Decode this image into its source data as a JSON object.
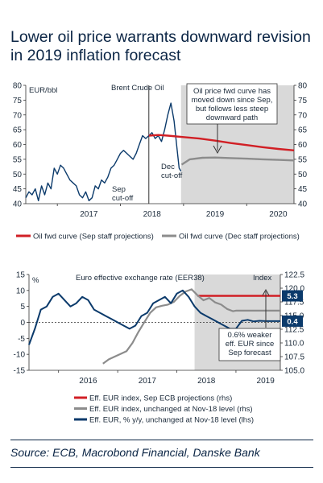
{
  "title": "Lower oil price warrants downward revision in 2019 inflation forecast",
  "source": "Source: ECB, Macrobond Financial, Danske Bank",
  "colors": {
    "navy": "#0b3a6b",
    "red": "#d11f25",
    "grey": "#8c8c8c",
    "shade": "#d9d9d9"
  },
  "chart_data": [
    {
      "type": "line",
      "unit_label": "EUR/bbl",
      "ylim": [
        40,
        80
      ],
      "yticks": [
        "40",
        "45",
        "50",
        "55",
        "60",
        "65",
        "70",
        "75",
        "80"
      ],
      "xlim": [
        2016.5,
        2020.75
      ],
      "xticks": [
        {
          "label": "2017",
          "x": 2017.0
        },
        {
          "label": "2018",
          "x": 2018.0
        },
        {
          "label": "2019",
          "x": 2019.0
        },
        {
          "label": "2020",
          "x": 2020.0
        }
      ],
      "series": [
        {
          "name": "Brent Crude Oil",
          "color": "#0b3a6b",
          "x": [
            2016.5,
            2016.55,
            2016.6,
            2016.65,
            2016.7,
            2016.75,
            2016.8,
            2016.85,
            2016.9,
            2016.95,
            2017.0,
            2017.05,
            2017.1,
            2017.15,
            2017.2,
            2017.25,
            2017.3,
            2017.35,
            2017.4,
            2017.45,
            2017.5,
            2017.55,
            2017.6,
            2017.65,
            2017.7,
            2017.75,
            2017.8,
            2017.85,
            2017.9,
            2017.95,
            2018.0,
            2018.05,
            2018.1,
            2018.15,
            2018.2,
            2018.25,
            2018.3,
            2018.35,
            2018.4,
            2018.45,
            2018.5,
            2018.55,
            2018.6,
            2018.65,
            2018.7,
            2018.75,
            2018.8,
            2018.85,
            2018.9,
            2018.93,
            2018.96
          ],
          "y": [
            42,
            44,
            43,
            45,
            41,
            46,
            43,
            47,
            45,
            52,
            50,
            53,
            52,
            50,
            48,
            47,
            46,
            43,
            42,
            44,
            41,
            42,
            46,
            45,
            48,
            47,
            49,
            52,
            53,
            55,
            57,
            58,
            57,
            56,
            55,
            57,
            60,
            63,
            62,
            63,
            64,
            62,
            63,
            61,
            65,
            70,
            74,
            68,
            58,
            52,
            51
          ]
        },
        {
          "name": "Oil fwd curve (Sep staff projections)",
          "color": "#d11f25",
          "x": [
            2018.45,
            2018.6,
            2018.75,
            2019.0,
            2019.25,
            2019.5,
            2019.75,
            2020.0,
            2020.25,
            2020.5,
            2020.75
          ],
          "y": [
            63.0,
            63.2,
            63.0,
            62.5,
            62.0,
            61.3,
            60.5,
            59.8,
            59.1,
            58.5,
            58.0
          ]
        },
        {
          "name": "Oil fwd curve (Dec staff projections)",
          "color": "#8c8c8c",
          "x": [
            2018.97,
            2019.1,
            2019.3,
            2019.5,
            2019.75,
            2020.0,
            2020.25,
            2020.5,
            2020.75
          ],
          "y": [
            53.2,
            55.0,
            55.5,
            55.6,
            55.4,
            55.2,
            55.0,
            54.8,
            54.6
          ]
        }
      ],
      "annotations": {
        "series_label": "Brent Crude Oil",
        "callout": [
          "Oil price fwd curve has",
          "moved down since Sep,",
          "but follows less steep",
          "downward path"
        ],
        "sep": [
          "Sep",
          "cut-off"
        ],
        "dec": [
          "Dec",
          "cut-off"
        ]
      },
      "shaded_from": 2018.96,
      "legend": [
        "Oil fwd curve (Sep staff projections)",
        "Oil fwd curve (Dec staff projections)"
      ]
    },
    {
      "type": "line",
      "left_unit": "%",
      "right_unit": "Index",
      "header": "Euro effective exchange rate (EER38)",
      "ylim_left": [
        -15,
        15
      ],
      "yticks_left": [
        "-15",
        "-10",
        "-5",
        "0",
        "5",
        "10",
        "15"
      ],
      "ylim_right": [
        105,
        122.5
      ],
      "yticks_right": [
        "105.0",
        "107.5",
        "110.0",
        "112.5",
        "115.0",
        "117.5",
        "120.0",
        "122.5"
      ],
      "xlim": [
        2015.5,
        2019.75
      ],
      "xticks": [
        {
          "label": "2016",
          "x": 2016.0
        },
        {
          "label": "2017",
          "x": 2017.0
        },
        {
          "label": "2018",
          "x": 2018.0
        },
        {
          "label": "2019",
          "x": 2019.0
        }
      ],
      "value_labels": [
        "5.3",
        "0.4"
      ],
      "callout": [
        "0.6% weaker",
        "eff. EUR since",
        "Sep forecast"
      ],
      "shaded_from": 2018.3,
      "series": [
        {
          "name": "Eff. EUR index, Sep ECB projections (rhs)",
          "axis": "right",
          "color": "#d11f25",
          "x": [
            2018.35,
            2019.75
          ],
          "y": [
            118.6,
            118.6
          ]
        },
        {
          "name": "Eff. EUR index, unchanged at Nov-18 level (rhs)",
          "axis": "right",
          "color": "#8c8c8c",
          "x": [
            2016.75,
            2016.85,
            2016.95,
            2017.05,
            2017.15,
            2017.25,
            2017.35,
            2017.45,
            2017.55,
            2017.65,
            2017.75,
            2017.85,
            2017.95,
            2018.05,
            2018.15,
            2018.25,
            2018.35,
            2018.45,
            2018.55,
            2018.65,
            2018.75,
            2018.85,
            2018.95,
            2019.0,
            2019.75
          ],
          "y": [
            106.2,
            107.0,
            107.5,
            108.0,
            108.5,
            110.0,
            112.0,
            113.8,
            115.5,
            116.5,
            116.8,
            117.0,
            117.5,
            118.6,
            119.4,
            119.8,
            118.7,
            117.8,
            118.2,
            117.4,
            117.0,
            116.2,
            115.8,
            115.9,
            115.9
          ]
        },
        {
          "name": "Eff. EUR, % y/y, unchanged at Nov-18 level (lhs)",
          "axis": "left",
          "color": "#0b3a6b",
          "x": [
            2015.5,
            2015.6,
            2015.7,
            2015.8,
            2015.9,
            2016.0,
            2016.1,
            2016.2,
            2016.3,
            2016.4,
            2016.5,
            2016.6,
            2016.7,
            2016.8,
            2016.9,
            2017.0,
            2017.1,
            2017.2,
            2017.3,
            2017.4,
            2017.5,
            2017.6,
            2017.7,
            2017.8,
            2017.9,
            2018.0,
            2018.1,
            2018.2,
            2018.3,
            2018.4,
            2018.5,
            2018.6,
            2018.7,
            2018.8,
            2018.9,
            2019.0,
            2019.1,
            2019.2,
            2019.3,
            2019.4,
            2019.5,
            2019.6,
            2019.75
          ],
          "y": [
            -7,
            -2,
            4,
            5,
            8,
            9,
            7,
            5,
            6,
            8,
            7,
            4,
            3,
            2,
            1,
            0,
            -1,
            -2,
            -1,
            2,
            3,
            6,
            7,
            8,
            6,
            9,
            10,
            8,
            5,
            3,
            2,
            1,
            0,
            -1,
            -2,
            -2,
            0.5,
            0.8,
            0.3,
            0.5,
            0.4,
            0.4,
            0.4
          ]
        }
      ],
      "legend": [
        "Eff. EUR index, Sep ECB projections (rhs)",
        "Eff. EUR index, unchanged at Nov-18 level (rhs)",
        "Eff. EUR, % y/y, unchanged at Nov-18 level (lhs)"
      ]
    }
  ]
}
